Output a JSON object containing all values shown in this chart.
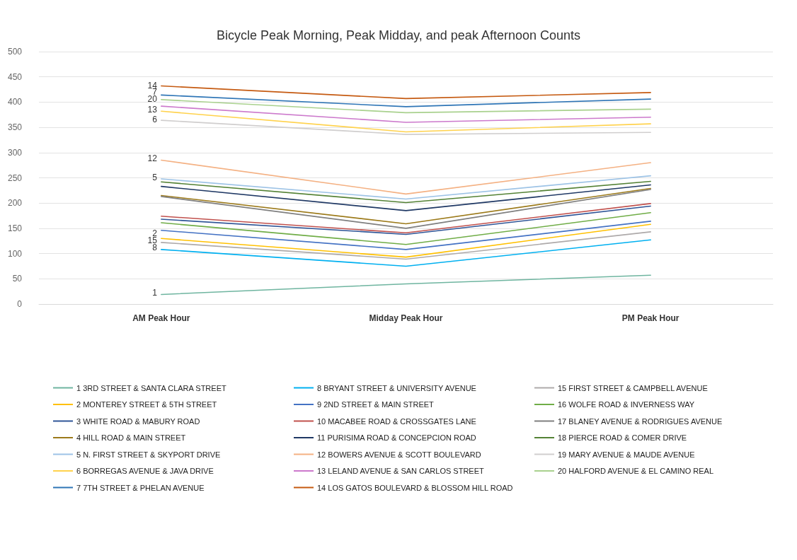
{
  "chart_data": {
    "type": "line",
    "title": "Bicycle Peak Morning, Peak Midday, and peak Afternoon Counts",
    "categories": [
      "AM Peak Hour",
      "Midday Peak Hour",
      "PM Peak Hour"
    ],
    "ylim": [
      0,
      500
    ],
    "yticks": [
      0,
      50,
      100,
      150,
      200,
      250,
      300,
      350,
      400,
      450,
      500
    ],
    "grid": "y",
    "legend": "bottom",
    "marker": "none",
    "line_style": "solid",
    "series": [
      {
        "name": "1 3RD STREET & SANTA CLARA STREET",
        "color": "#6fb5a0",
        "values": [
          19,
          40,
          57
        ]
      },
      {
        "name": "2 MONTEREY STREET & 5TH STREET",
        "color": "#ffc000",
        "values": [
          130,
          93,
          158
        ]
      },
      {
        "name": "3 WHITE ROAD & MABURY ROAD",
        "color": "#2f5597",
        "values": [
          168,
          138,
          194
        ]
      },
      {
        "name": "4 HILL ROAD & MAIN STREET",
        "color": "#9c7a1a",
        "values": [
          215,
          159,
          229
        ]
      },
      {
        "name": "5 N. FIRST STREET & SKYPORT DRIVE",
        "color": "#9dc3e6",
        "values": [
          248,
          208,
          254
        ]
      },
      {
        "name": "6 BORREGAS AVENUE & JAVA DRIVE",
        "color": "#ffd24d",
        "values": [
          382,
          341,
          357
        ]
      },
      {
        "name": "7 7TH STREET & PHELAN AVENUE",
        "color": "#2e75b6",
        "values": [
          414,
          391,
          406
        ]
      },
      {
        "name": "8 BRYANT STREET & UNIVERSITY AVENUE",
        "color": "#00b0f0",
        "values": [
          108,
          75,
          127
        ]
      },
      {
        "name": "9 2ND STREET & MAIN STREET",
        "color": "#4472c4",
        "values": [
          146,
          108,
          164
        ]
      },
      {
        "name": "10 MACABEE ROAD & CROSSGATES LANE",
        "color": "#c0504d",
        "values": [
          174,
          141,
          199
        ]
      },
      {
        "name": "11 PURISIMA ROAD & CONCEPCION ROAD",
        "color": "#1f3864",
        "values": [
          233,
          185,
          236
        ]
      },
      {
        "name": "12 BOWERS AVENUE & SCOTT BOULEVARD",
        "color": "#f4b183",
        "values": [
          285,
          218,
          280
        ]
      },
      {
        "name": "13 LELAND AVENUE & SAN CARLOS STREET",
        "color": "#cc79cc",
        "values": [
          392,
          360,
          370
        ]
      },
      {
        "name": "14 LOS GATOS BOULEVARD & BLOSSOM HILL ROAD",
        "color": "#c55a11",
        "values": [
          432,
          407,
          419
        ]
      },
      {
        "name": "15 FIRST STREET & CAMPBELL AVENUE",
        "color": "#aeaaaa",
        "values": [
          122,
          89,
          143
        ]
      },
      {
        "name": "16 WOLFE ROAD & INVERNESS WAY",
        "color": "#70ad47",
        "values": [
          161,
          118,
          181
        ]
      },
      {
        "name": "17 BLANEY AVENUE & RODRIGUES AVENUE",
        "color": "#7f7f7f",
        "values": [
          213,
          150,
          227
        ]
      },
      {
        "name": "18 PIERCE ROAD & COMER DRIVE",
        "color": "#548235",
        "values": [
          242,
          201,
          243
        ]
      },
      {
        "name": "19 MARY AVENUE & MAUDE AVENUE",
        "color": "#d0cece",
        "values": [
          364,
          336,
          340
        ]
      },
      {
        "name": "20 HALFORD AVENUE & EL CAMINO REAL",
        "color": "#a9d18e",
        "values": [
          405,
          379,
          386
        ]
      }
    ],
    "annotations": [
      {
        "text": "14",
        "x": "AM Peak Hour",
        "y": 433
      },
      {
        "text": "7",
        "x": "AM Peak Hour",
        "y": 420
      },
      {
        "text": "20",
        "x": "AM Peak Hour",
        "y": 406
      },
      {
        "text": "13",
        "x": "AM Peak Hour",
        "y": 385
      },
      {
        "text": "6",
        "x": "AM Peak Hour",
        "y": 366
      },
      {
        "text": "12",
        "x": "AM Peak Hour",
        "y": 288
      },
      {
        "text": "5",
        "x": "AM Peak Hour",
        "y": 251
      },
      {
        "text": "2",
        "x": "AM Peak Hour",
        "y": 140
      },
      {
        "text": "15",
        "x": "AM Peak Hour",
        "y": 126
      },
      {
        "text": "8",
        "x": "AM Peak Hour",
        "y": 112
      },
      {
        "text": "1",
        "x": "AM Peak Hour",
        "y": 23
      }
    ]
  }
}
